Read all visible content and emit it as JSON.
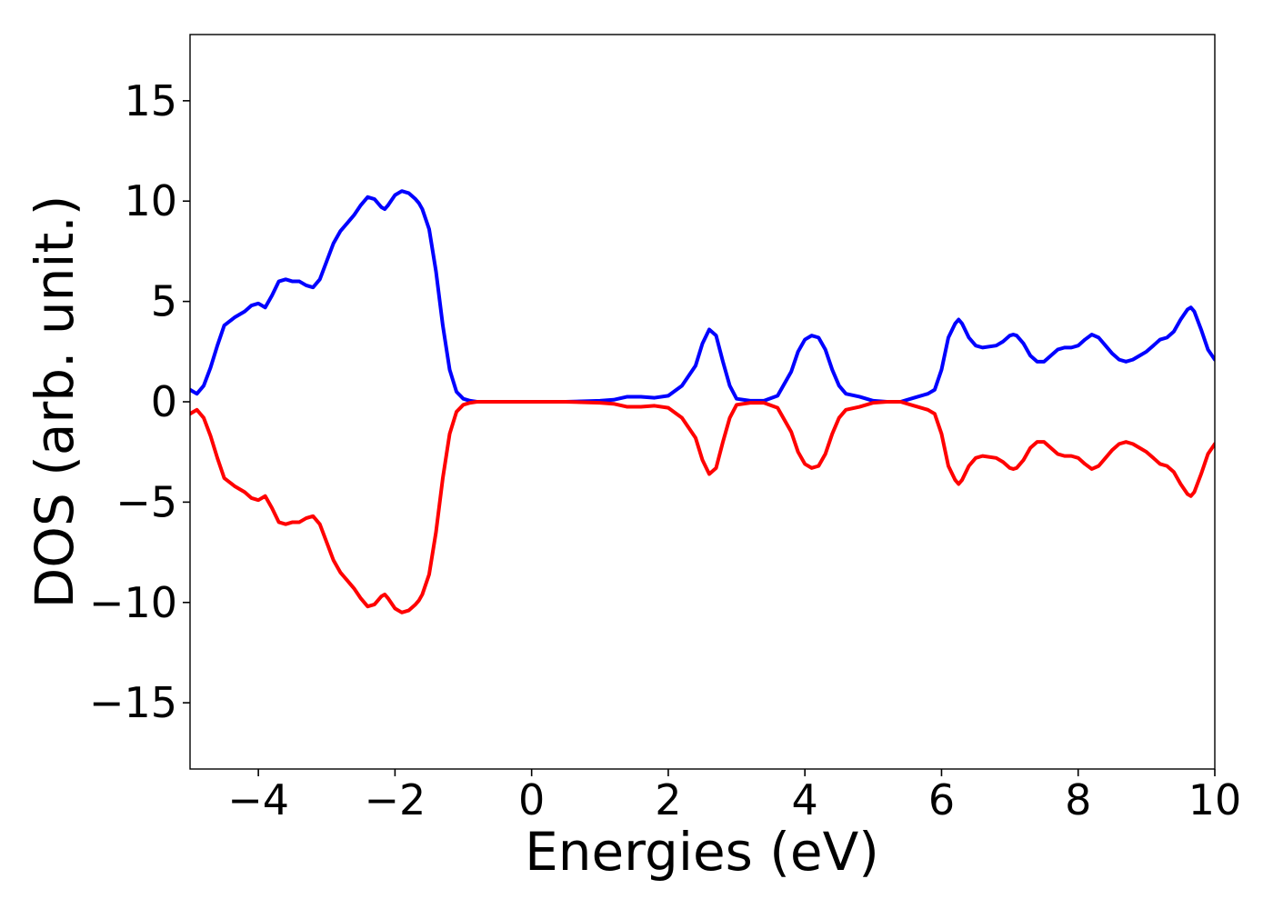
{
  "chart_data": {
    "type": "line",
    "title": "",
    "xlabel": "Energies (eV)",
    "ylabel": "DOS (arb. unit.)",
    "xlim": [
      -5,
      10
    ],
    "ylim": [
      -18.3,
      18.3
    ],
    "xticks": [
      -4,
      -2,
      0,
      2,
      4,
      6,
      8,
      10
    ],
    "yticks": [
      -15,
      -10,
      -5,
      0,
      5,
      10,
      15
    ],
    "xtick_labels": [
      "−4",
      "−2",
      "0",
      "2",
      "4",
      "6",
      "8",
      "10"
    ],
    "ytick_labels": [
      "−15",
      "−10",
      "−5",
      "0",
      "5",
      "10",
      "15"
    ],
    "grid": false,
    "legend": "none",
    "series": [
      {
        "color": "#0000ff",
        "x": [
          -5.0,
          -4.9,
          -4.8,
          -4.7,
          -4.6,
          -4.5,
          -4.35,
          -4.2,
          -4.1,
          -4.0,
          -3.9,
          -3.8,
          -3.7,
          -3.6,
          -3.5,
          -3.4,
          -3.3,
          -3.2,
          -3.1,
          -3.0,
          -2.9,
          -2.8,
          -2.7,
          -2.6,
          -2.5,
          -2.4,
          -2.3,
          -2.2,
          -2.15,
          -2.1,
          -2.0,
          -1.9,
          -1.8,
          -1.7,
          -1.65,
          -1.6,
          -1.5,
          -1.4,
          -1.3,
          -1.2,
          -1.1,
          -1.0,
          -0.9,
          -0.8,
          -0.7,
          -0.6,
          -0.5,
          -0.3,
          0.0,
          0.5,
          1.0,
          1.2,
          1.4,
          1.6,
          1.8,
          2.0,
          2.2,
          2.4,
          2.5,
          2.6,
          2.7,
          2.8,
          2.9,
          3.0,
          3.2,
          3.4,
          3.6,
          3.8,
          3.9,
          4.0,
          4.1,
          4.2,
          4.3,
          4.4,
          4.5,
          4.6,
          4.8,
          5.0,
          5.2,
          5.4,
          5.6,
          5.8,
          5.9,
          6.0,
          6.1,
          6.2,
          6.25,
          6.3,
          6.4,
          6.5,
          6.6,
          6.8,
          6.9,
          7.0,
          7.05,
          7.1,
          7.2,
          7.3,
          7.4,
          7.5,
          7.6,
          7.7,
          7.8,
          7.9,
          8.0,
          8.1,
          8.2,
          8.3,
          8.4,
          8.5,
          8.6,
          8.7,
          8.8,
          8.9,
          9.0,
          9.1,
          9.2,
          9.3,
          9.4,
          9.5,
          9.6,
          9.65,
          9.7,
          9.8,
          9.9,
          10.0
        ],
        "y": [
          0.6,
          0.4,
          0.8,
          1.7,
          2.8,
          3.8,
          4.2,
          4.5,
          4.8,
          4.9,
          4.7,
          5.3,
          6.0,
          6.1,
          6.0,
          6.0,
          5.8,
          5.7,
          6.1,
          7.0,
          7.9,
          8.5,
          8.9,
          9.3,
          9.8,
          10.2,
          10.1,
          9.7,
          9.6,
          9.8,
          10.3,
          10.5,
          10.4,
          10.1,
          9.9,
          9.6,
          8.6,
          6.5,
          3.8,
          1.6,
          0.5,
          0.15,
          0.05,
          0.0,
          0.0,
          0.0,
          0.0,
          0.0,
          0.0,
          0.0,
          0.05,
          0.1,
          0.25,
          0.25,
          0.2,
          0.3,
          0.8,
          1.8,
          2.9,
          3.6,
          3.3,
          2.0,
          0.8,
          0.15,
          0.05,
          0.05,
          0.3,
          1.5,
          2.5,
          3.1,
          3.3,
          3.2,
          2.6,
          1.6,
          0.8,
          0.4,
          0.25,
          0.05,
          0.0,
          0.0,
          0.2,
          0.4,
          0.6,
          1.6,
          3.2,
          3.9,
          4.1,
          3.9,
          3.2,
          2.8,
          2.7,
          2.8,
          3.0,
          3.3,
          3.35,
          3.3,
          2.9,
          2.3,
          2.0,
          2.0,
          2.3,
          2.6,
          2.7,
          2.7,
          2.8,
          3.1,
          3.35,
          3.2,
          2.8,
          2.4,
          2.1,
          2.0,
          2.1,
          2.3,
          2.5,
          2.8,
          3.1,
          3.2,
          3.5,
          4.1,
          4.6,
          4.7,
          4.5,
          3.6,
          2.6,
          2.1
        ]
      },
      {
        "color": "#ff0000",
        "x": [
          -5.0,
          -4.9,
          -4.8,
          -4.7,
          -4.6,
          -4.5,
          -4.35,
          -4.2,
          -4.1,
          -4.0,
          -3.9,
          -3.8,
          -3.7,
          -3.6,
          -3.5,
          -3.4,
          -3.3,
          -3.2,
          -3.1,
          -3.0,
          -2.9,
          -2.8,
          -2.7,
          -2.6,
          -2.5,
          -2.4,
          -2.3,
          -2.2,
          -2.15,
          -2.1,
          -2.0,
          -1.9,
          -1.8,
          -1.7,
          -1.65,
          -1.6,
          -1.5,
          -1.4,
          -1.3,
          -1.2,
          -1.1,
          -1.0,
          -0.9,
          -0.8,
          -0.7,
          -0.6,
          -0.5,
          -0.3,
          0.0,
          0.5,
          1.0,
          1.2,
          1.4,
          1.6,
          1.8,
          2.0,
          2.2,
          2.4,
          2.5,
          2.6,
          2.7,
          2.8,
          2.9,
          3.0,
          3.2,
          3.4,
          3.6,
          3.8,
          3.9,
          4.0,
          4.1,
          4.2,
          4.3,
          4.4,
          4.5,
          4.6,
          4.8,
          5.0,
          5.2,
          5.4,
          5.6,
          5.8,
          5.9,
          6.0,
          6.1,
          6.2,
          6.25,
          6.3,
          6.4,
          6.5,
          6.6,
          6.8,
          6.9,
          7.0,
          7.05,
          7.1,
          7.2,
          7.3,
          7.4,
          7.5,
          7.6,
          7.7,
          7.8,
          7.9,
          8.0,
          8.1,
          8.2,
          8.3,
          8.4,
          8.5,
          8.6,
          8.7,
          8.8,
          8.9,
          9.0,
          9.1,
          9.2,
          9.3,
          9.4,
          9.5,
          9.6,
          9.65,
          9.7,
          9.8,
          9.9,
          10.0
        ],
        "y": [
          -0.6,
          -0.4,
          -0.8,
          -1.7,
          -2.8,
          -3.8,
          -4.2,
          -4.5,
          -4.8,
          -4.9,
          -4.7,
          -5.3,
          -6.0,
          -6.1,
          -6.0,
          -6.0,
          -5.8,
          -5.7,
          -6.1,
          -7.0,
          -7.9,
          -8.5,
          -8.9,
          -9.3,
          -9.8,
          -10.2,
          -10.1,
          -9.7,
          -9.6,
          -9.8,
          -10.3,
          -10.5,
          -10.4,
          -10.1,
          -9.9,
          -9.6,
          -8.6,
          -6.5,
          -3.8,
          -1.6,
          -0.5,
          -0.15,
          -0.05,
          0.0,
          0.0,
          0.0,
          0.0,
          0.0,
          0.0,
          0.0,
          -0.05,
          -0.1,
          -0.25,
          -0.25,
          -0.2,
          -0.3,
          -0.8,
          -1.8,
          -2.9,
          -3.6,
          -3.3,
          -2.0,
          -0.8,
          -0.15,
          -0.05,
          -0.05,
          -0.3,
          -1.5,
          -2.5,
          -3.1,
          -3.3,
          -3.2,
          -2.6,
          -1.6,
          -0.8,
          -0.4,
          -0.25,
          -0.05,
          0.0,
          0.0,
          -0.2,
          -0.4,
          -0.6,
          -1.6,
          -3.2,
          -3.9,
          -4.1,
          -3.9,
          -3.2,
          -2.8,
          -2.7,
          -2.8,
          -3.0,
          -3.3,
          -3.35,
          -3.3,
          -2.9,
          -2.3,
          -2.0,
          -2.0,
          -2.3,
          -2.6,
          -2.7,
          -2.7,
          -2.8,
          -3.1,
          -3.35,
          -3.2,
          -2.8,
          -2.4,
          -2.1,
          -2.0,
          -2.1,
          -2.3,
          -2.5,
          -2.8,
          -3.1,
          -3.2,
          -3.5,
          -4.1,
          -4.6,
          -4.7,
          -4.5,
          -3.6,
          -2.6,
          -2.1
        ]
      }
    ]
  }
}
